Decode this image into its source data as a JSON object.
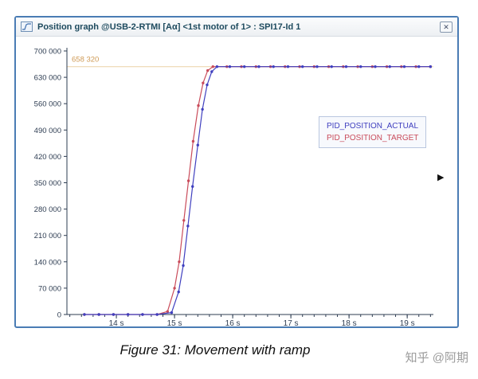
{
  "window": {
    "title": "Position graph @USB-2-RTMI [Aα] <1st motor of 1> : SPI17-Id 1"
  },
  "icons": {
    "titlebar": "graph-icon",
    "close": "✕",
    "scroll_arrow": "▶"
  },
  "caption": "Figure 31: Movement with ramp",
  "watermark": "知乎 @阿期",
  "chart_data": {
    "type": "line",
    "title": "",
    "xlabel": "",
    "ylabel": "",
    "grid": false,
    "xlim": [
      13.15,
      19.45
    ],
    "ylim": [
      0,
      700000
    ],
    "x_major_ticks": [
      14,
      15,
      16,
      17,
      18,
      19
    ],
    "x_tick_labels": [
      "14 s",
      "15 s",
      "16 s",
      "17 s",
      "18 s",
      "19 s"
    ],
    "x_minor_step": 0.2,
    "y_major_step": 70000,
    "y_tick_labels": [
      "0",
      "70 000",
      "140 000",
      "210 000",
      "280 000",
      "350 000",
      "420 000",
      "490 000",
      "560 000",
      "630 000",
      "700 000"
    ],
    "axis_color": "#2e3d52",
    "reference_line": {
      "value": 658320,
      "label": "658 320",
      "label_color": "#cf9a55",
      "line_color": "#ecd2a6"
    },
    "legend": {
      "position": "right-center",
      "entries": [
        {
          "name": "PID_POSITION_ACTUAL",
          "color": "#3f3fbf"
        },
        {
          "name": "PID_POSITION_TARGET",
          "color": "#c94b5a"
        }
      ]
    },
    "series": [
      {
        "name": "PID_POSITION_TARGET",
        "color": "#c94b5a",
        "points": [
          [
            13.45,
            0
          ],
          [
            13.7,
            0
          ],
          [
            13.95,
            0
          ],
          [
            14.2,
            0
          ],
          [
            14.45,
            0
          ],
          [
            14.7,
            0
          ],
          [
            14.88,
            8000
          ],
          [
            15.0,
            70000
          ],
          [
            15.08,
            140000
          ],
          [
            15.16,
            250000
          ],
          [
            15.24,
            355000
          ],
          [
            15.32,
            460000
          ],
          [
            15.41,
            555000
          ],
          [
            15.49,
            615000
          ],
          [
            15.57,
            648000
          ],
          [
            15.66,
            658320
          ],
          [
            15.9,
            658320
          ],
          [
            16.15,
            658320
          ],
          [
            16.4,
            658320
          ],
          [
            16.65,
            658320
          ],
          [
            16.9,
            658320
          ],
          [
            17.15,
            658320
          ],
          [
            17.4,
            658320
          ],
          [
            17.65,
            658320
          ],
          [
            17.9,
            658320
          ],
          [
            18.15,
            658320
          ],
          [
            18.4,
            658320
          ],
          [
            18.65,
            658320
          ],
          [
            18.9,
            658320
          ],
          [
            19.15,
            658320
          ],
          [
            19.4,
            658320
          ]
        ]
      },
      {
        "name": "PID_POSITION_ACTUAL",
        "color": "#3f3fbf",
        "points": [
          [
            13.45,
            0
          ],
          [
            13.7,
            0
          ],
          [
            13.95,
            0
          ],
          [
            14.2,
            0
          ],
          [
            14.45,
            0
          ],
          [
            14.7,
            0
          ],
          [
            14.95,
            5000
          ],
          [
            15.07,
            60000
          ],
          [
            15.15,
            130000
          ],
          [
            15.23,
            235000
          ],
          [
            15.31,
            340000
          ],
          [
            15.4,
            450000
          ],
          [
            15.48,
            545000
          ],
          [
            15.56,
            610000
          ],
          [
            15.64,
            645000
          ],
          [
            15.73,
            658320
          ],
          [
            15.95,
            658320
          ],
          [
            16.2,
            658320
          ],
          [
            16.45,
            658320
          ],
          [
            16.7,
            658320
          ],
          [
            16.95,
            658320
          ],
          [
            17.2,
            658320
          ],
          [
            17.45,
            658320
          ],
          [
            17.7,
            658320
          ],
          [
            17.95,
            658320
          ],
          [
            18.2,
            658320
          ],
          [
            18.45,
            658320
          ],
          [
            18.7,
            658320
          ],
          [
            18.95,
            658320
          ],
          [
            19.2,
            658320
          ],
          [
            19.4,
            658320
          ]
        ]
      }
    ]
  }
}
